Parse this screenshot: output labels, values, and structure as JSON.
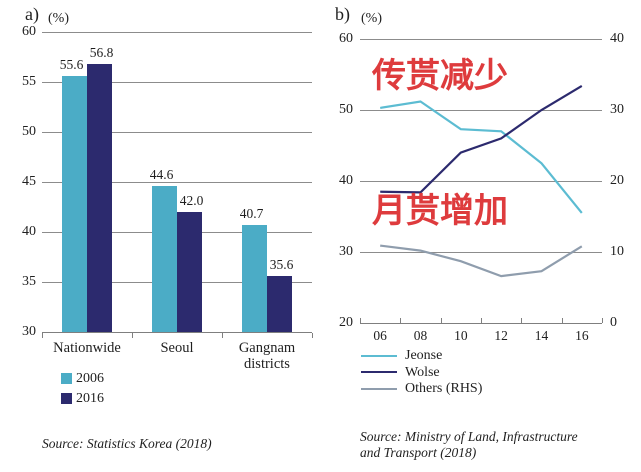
{
  "panel_a": {
    "label": "a)",
    "unit_label": "(%)",
    "source": "Source: Statistics Korea (2018)"
  },
  "panel_b": {
    "label": "b)",
    "unit_label": "(%)",
    "annotations": [
      {
        "text": "传贳减少",
        "color": "#de3b3d"
      },
      {
        "text": "月贳增加",
        "color": "#de3b3d"
      }
    ],
    "source_lines": [
      "Source: Ministry of Land, Infrastructure",
      "and Transport (2018)"
    ]
  },
  "colors": {
    "light_blue": "#4bacc6",
    "navy": "#2c2a6e",
    "jeonse_line": "#5cbcd2",
    "others_line": "#8f9dad",
    "grid": "#8c8c8c",
    "annotation_red": "#de3b3d"
  },
  "chart_data": [
    {
      "type": "bar",
      "panel": "a",
      "unit": "(%)",
      "categories": [
        "Nationwide",
        "Seoul",
        "Gangnam districts"
      ],
      "series": [
        {
          "name": "2006",
          "color": "#4bacc6",
          "values": [
            55.6,
            44.6,
            40.7
          ]
        },
        {
          "name": "2016",
          "color": "#2c2a6e",
          "values": [
            56.8,
            42.0,
            35.6
          ]
        }
      ],
      "ylim": [
        30,
        60
      ],
      "yticks": [
        30,
        35,
        40,
        45,
        50,
        55,
        60
      ],
      "grid": true,
      "legend_position": "bottom-left",
      "source": "Source: Statistics Korea (2018)"
    },
    {
      "type": "line",
      "panel": "b",
      "unit": "(%)",
      "x_labels": [
        "06",
        "08",
        "10",
        "12",
        "14",
        "16"
      ],
      "series": [
        {
          "name": "Jeonse",
          "axis": "left",
          "color": "#5cbcd2",
          "values": [
            50.3,
            51.2,
            47.3,
            47.0,
            42.5,
            35.5
          ]
        },
        {
          "name": "Wolse",
          "axis": "left",
          "color": "#2c2a6e",
          "values": [
            38.5,
            38.4,
            44.0,
            46.0,
            50.0,
            53.4
          ]
        },
        {
          "name": "Others (RHS)",
          "axis": "right",
          "color": "#8f9dad",
          "values": [
            10.9,
            10.2,
            8.7,
            6.6,
            7.3,
            10.8
          ]
        }
      ],
      "left_axis": {
        "ylim": [
          20,
          60
        ],
        "yticks": [
          20,
          30,
          40,
          50,
          60
        ]
      },
      "right_axis": {
        "ylim": [
          0,
          40
        ],
        "yticks": [
          0,
          10,
          20,
          30,
          40
        ]
      },
      "grid": true,
      "annotations": [
        "传贳减少",
        "月贳增加"
      ],
      "legend_position": "bottom-left",
      "source": "Source: Ministry of Land, Infrastructure and Transport (2018)"
    }
  ]
}
